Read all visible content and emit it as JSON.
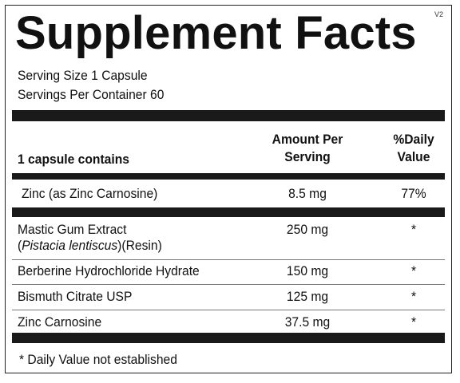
{
  "label": {
    "version": "V2",
    "title": "Supplement Facts",
    "serving_size": "Serving Size  1 Capsule",
    "servings_per_container": "Servings Per Container  60"
  },
  "header": {
    "contains": "1 capsule contains",
    "amount_line1": "Amount Per",
    "amount_line2": "Serving",
    "dv_line1": "%Daily",
    "dv_line2": "Value"
  },
  "rows": [
    {
      "name": "Zinc (as Zinc Carnosine)",
      "amount": "8.5 mg",
      "dv": "77%"
    },
    {
      "name": "Mastic Gum Extract",
      "name_sub_prefix": "(",
      "name_sub_italic": "Pistacia lentiscus",
      "name_sub_suffix": ")(Resin)",
      "amount": "250 mg",
      "dv": "*"
    },
    {
      "name": "Berberine Hydrochloride Hydrate",
      "amount": "150 mg",
      "dv": "*"
    },
    {
      "name": "Bismuth Citrate USP",
      "amount": "125 mg",
      "dv": "*"
    },
    {
      "name": "Zinc Carnosine",
      "amount": "37.5 mg",
      "dv": "*"
    }
  ],
  "footnote": "* Daily Value not established"
}
